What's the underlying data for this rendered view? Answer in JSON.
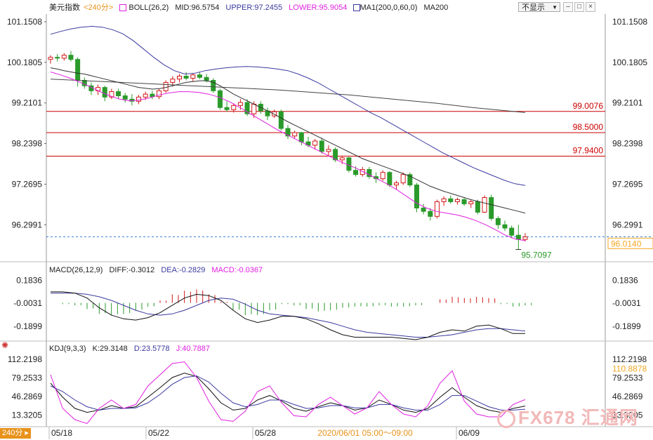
{
  "header": {
    "symbol_label": "美元指数",
    "period_label": "<240分>",
    "boll_label": "BOLL(26,2)",
    "mid_label": "MID:96.5754",
    "upper_label": "UPPER:97.2455",
    "lower_label": "LOWER:95.9054",
    "ma_label": "MA1(200,0,60,0)",
    "ma200_label": "MA200",
    "display_select": "不显示",
    "ctrl_minimize": "–",
    "ctrl_restore": "□",
    "ctrl_close": "×"
  },
  "macd_header": {
    "title": "MACD(26,12,9)",
    "diff": "DIFF:-0.3012",
    "dea": "DEA:-0.2829",
    "macd": "MACD:-0.0367"
  },
  "kdj_header": {
    "title": "KDJ(9,3,3)",
    "k": "K:29.3148",
    "d": "D:23.5778",
    "j": "J:40.7887"
  },
  "footer": {
    "period_tag": "240分",
    "period_arrow": "▸",
    "watermark": "FX678 汇通网"
  },
  "colors": {
    "up": "#d21919",
    "down": "#2a9a2a",
    "mid_line": "#333333",
    "upper_line": "#3a3aa0",
    "lower_line": "#e020e0",
    "ma200_line": "#444444",
    "hline": "#cc0000",
    "current_price": "#2f7fd8",
    "kdj_k": "#111111",
    "kdj_d": "#3a3aa0",
    "kdj_j": "#e020e0",
    "value_label_price": "#f5a623"
  },
  "chart_data": [
    {
      "type": "candlestick",
      "name": "美元指数",
      "title": "美元指数 <240分>",
      "y_ticks": [
        "101.1508",
        "100.1805",
        "99.2101",
        "98.2398",
        "97.2695",
        "96.2991"
      ],
      "ylim": [
        95.5,
        101.3
      ],
      "x_tick_labels": [
        "05/18",
        "05/22",
        "05/28",
        "2020/06/01 05:00～09:00",
        "06/09"
      ],
      "horizontal_levels": [
        {
          "label": "99.0076",
          "value": 99.0076
        },
        {
          "label": "98.5000",
          "value": 98.5
        },
        {
          "label": "97.9400",
          "value": 97.94
        }
      ],
      "current_price": {
        "label": "96.0140",
        "value": 96.014
      },
      "low_annotation": {
        "label": "95.7097",
        "value": 95.7097
      },
      "candles": [
        {
          "o": 100.25,
          "h": 100.35,
          "l": 100.15,
          "c": 100.3
        },
        {
          "o": 100.3,
          "h": 100.38,
          "l": 100.2,
          "c": 100.28
        },
        {
          "o": 100.28,
          "h": 100.4,
          "l": 100.22,
          "c": 100.35
        },
        {
          "o": 100.35,
          "h": 100.45,
          "l": 100.2,
          "c": 100.25
        },
        {
          "o": 100.25,
          "h": 100.3,
          "l": 99.6,
          "c": 99.75
        },
        {
          "o": 99.75,
          "h": 99.82,
          "l": 99.55,
          "c": 99.62
        },
        {
          "o": 99.62,
          "h": 99.7,
          "l": 99.4,
          "c": 99.5
        },
        {
          "o": 99.5,
          "h": 99.65,
          "l": 99.4,
          "c": 99.58
        },
        {
          "o": 99.58,
          "h": 99.62,
          "l": 99.25,
          "c": 99.35
        },
        {
          "o": 99.35,
          "h": 99.55,
          "l": 99.3,
          "c": 99.48
        },
        {
          "o": 99.48,
          "h": 99.55,
          "l": 99.3,
          "c": 99.38
        },
        {
          "o": 99.38,
          "h": 99.45,
          "l": 99.22,
          "c": 99.3
        },
        {
          "o": 99.3,
          "h": 99.42,
          "l": 99.15,
          "c": 99.25
        },
        {
          "o": 99.25,
          "h": 99.4,
          "l": 99.18,
          "c": 99.35
        },
        {
          "o": 99.35,
          "h": 99.48,
          "l": 99.28,
          "c": 99.42
        },
        {
          "o": 99.42,
          "h": 99.5,
          "l": 99.3,
          "c": 99.36
        },
        {
          "o": 99.36,
          "h": 99.55,
          "l": 99.3,
          "c": 99.5
        },
        {
          "o": 99.5,
          "h": 99.75,
          "l": 99.45,
          "c": 99.7
        },
        {
          "o": 99.7,
          "h": 99.85,
          "l": 99.6,
          "c": 99.78
        },
        {
          "o": 99.78,
          "h": 99.9,
          "l": 99.7,
          "c": 99.85
        },
        {
          "o": 99.85,
          "h": 99.95,
          "l": 99.75,
          "c": 99.8
        },
        {
          "o": 99.8,
          "h": 99.92,
          "l": 99.72,
          "c": 99.88
        },
        {
          "o": 99.88,
          "h": 99.95,
          "l": 99.78,
          "c": 99.82
        },
        {
          "o": 99.82,
          "h": 99.9,
          "l": 99.7,
          "c": 99.75
        },
        {
          "o": 99.75,
          "h": 99.8,
          "l": 99.45,
          "c": 99.5
        },
        {
          "o": 99.5,
          "h": 99.55,
          "l": 99.05,
          "c": 99.1
        },
        {
          "o": 99.1,
          "h": 99.25,
          "l": 99.0,
          "c": 99.05
        },
        {
          "o": 99.05,
          "h": 99.2,
          "l": 98.98,
          "c": 99.15
        },
        {
          "o": 99.15,
          "h": 99.3,
          "l": 99.05,
          "c": 99.22
        },
        {
          "o": 99.22,
          "h": 99.3,
          "l": 98.9,
          "c": 98.95
        },
        {
          "o": 98.95,
          "h": 99.25,
          "l": 98.85,
          "c": 99.18
        },
        {
          "o": 99.18,
          "h": 99.25,
          "l": 98.95,
          "c": 99.02
        },
        {
          "o": 99.02,
          "h": 99.1,
          "l": 98.8,
          "c": 98.9
        },
        {
          "o": 98.9,
          "h": 99.05,
          "l": 98.85,
          "c": 99.0
        },
        {
          "o": 99.0,
          "h": 99.05,
          "l": 98.55,
          "c": 98.6
        },
        {
          "o": 98.6,
          "h": 98.68,
          "l": 98.35,
          "c": 98.42
        },
        {
          "o": 98.42,
          "h": 98.55,
          "l": 98.35,
          "c": 98.5
        },
        {
          "o": 98.5,
          "h": 98.52,
          "l": 98.2,
          "c": 98.28
        },
        {
          "o": 98.28,
          "h": 98.4,
          "l": 98.15,
          "c": 98.2
        },
        {
          "o": 98.2,
          "h": 98.35,
          "l": 98.1,
          "c": 98.3
        },
        {
          "o": 98.3,
          "h": 98.38,
          "l": 98.0,
          "c": 98.05
        },
        {
          "o": 98.05,
          "h": 98.2,
          "l": 97.95,
          "c": 98.1
        },
        {
          "o": 98.1,
          "h": 98.15,
          "l": 97.8,
          "c": 97.85
        },
        {
          "o": 97.85,
          "h": 97.95,
          "l": 97.75,
          "c": 97.9
        },
        {
          "o": 97.9,
          "h": 97.92,
          "l": 97.55,
          "c": 97.6
        },
        {
          "o": 97.6,
          "h": 97.7,
          "l": 97.45,
          "c": 97.5
        },
        {
          "o": 97.5,
          "h": 97.68,
          "l": 97.45,
          "c": 97.62
        },
        {
          "o": 97.62,
          "h": 97.68,
          "l": 97.4,
          "c": 97.45
        },
        {
          "o": 97.45,
          "h": 97.55,
          "l": 97.3,
          "c": 97.4
        },
        {
          "o": 97.4,
          "h": 97.6,
          "l": 97.35,
          "c": 97.55
        },
        {
          "o": 97.55,
          "h": 97.58,
          "l": 97.2,
          "c": 97.25
        },
        {
          "o": 97.25,
          "h": 97.35,
          "l": 97.15,
          "c": 97.3
        },
        {
          "o": 97.3,
          "h": 97.55,
          "l": 97.25,
          "c": 97.5
        },
        {
          "o": 97.5,
          "h": 97.55,
          "l": 97.2,
          "c": 97.25
        },
        {
          "o": 97.25,
          "h": 97.3,
          "l": 96.6,
          "c": 96.7
        },
        {
          "o": 96.7,
          "h": 96.8,
          "l": 96.55,
          "c": 96.62
        },
        {
          "o": 96.62,
          "h": 96.7,
          "l": 96.4,
          "c": 96.5
        },
        {
          "o": 96.5,
          "h": 96.9,
          "l": 96.45,
          "c": 96.85
        },
        {
          "o": 96.85,
          "h": 96.98,
          "l": 96.75,
          "c": 96.92
        },
        {
          "o": 96.92,
          "h": 97.0,
          "l": 96.8,
          "c": 96.85
        },
        {
          "o": 96.85,
          "h": 96.95,
          "l": 96.78,
          "c": 96.9
        },
        {
          "o": 96.9,
          "h": 96.95,
          "l": 96.75,
          "c": 96.8
        },
        {
          "o": 96.8,
          "h": 96.9,
          "l": 96.7,
          "c": 96.85
        },
        {
          "o": 96.85,
          "h": 96.9,
          "l": 96.55,
          "c": 96.6
        },
        {
          "o": 96.6,
          "h": 97.0,
          "l": 96.58,
          "c": 96.95
        },
        {
          "o": 96.95,
          "h": 97.02,
          "l": 96.4,
          "c": 96.45
        },
        {
          "o": 96.45,
          "h": 96.5,
          "l": 96.2,
          "c": 96.3
        },
        {
          "o": 96.3,
          "h": 96.4,
          "l": 96.15,
          "c": 96.22
        },
        {
          "o": 96.22,
          "h": 96.28,
          "l": 95.98,
          "c": 96.05
        },
        {
          "o": 96.05,
          "h": 96.3,
          "l": 95.71,
          "c": 95.95
        },
        {
          "o": 95.95,
          "h": 96.1,
          "l": 95.9,
          "c": 96.01
        }
      ],
      "mid_line": [
        100.05,
        100.02,
        99.98,
        99.95,
        99.92,
        99.9,
        99.86,
        99.82,
        99.78,
        99.74,
        99.7,
        99.66,
        99.62,
        99.58,
        99.56,
        99.54,
        99.55,
        99.58,
        99.62,
        99.66,
        99.7,
        99.72,
        99.74,
        99.74,
        99.7,
        99.62,
        99.52,
        99.42,
        99.34,
        99.26,
        99.18,
        99.1,
        99.02,
        98.94,
        98.85,
        98.76,
        98.68,
        98.6,
        98.52,
        98.44,
        98.36,
        98.28,
        98.2,
        98.12,
        98.04,
        97.96,
        97.88,
        97.82,
        97.76,
        97.7,
        97.64,
        97.58,
        97.52,
        97.46,
        97.38,
        97.3,
        97.22,
        97.16,
        97.1,
        97.05,
        97.0,
        96.95,
        96.9,
        96.86,
        96.82,
        96.78,
        96.74,
        96.7,
        96.66,
        96.62,
        96.58
      ],
      "upper_band": [
        100.85,
        100.92,
        100.98,
        101.02,
        101.04,
        101.02,
        100.96,
        100.86,
        100.7,
        100.5,
        100.3,
        100.12,
        99.98,
        99.9,
        99.92,
        99.98,
        100.02,
        100.05,
        100.07,
        100.08,
        100.07,
        100.05,
        100.02,
        99.98,
        99.9,
        99.8,
        99.68,
        99.54,
        99.4,
        99.26,
        99.12,
        98.98,
        98.86,
        98.72,
        98.58,
        98.44,
        98.3,
        98.16,
        98.02,
        97.9,
        97.78,
        97.66,
        97.56,
        97.46,
        97.36,
        97.28,
        97.24
      ],
      "lower_band": [
        99.95,
        99.88,
        99.8,
        99.7,
        99.6,
        99.48,
        99.38,
        99.3,
        99.26,
        99.28,
        99.33,
        99.4,
        99.45,
        99.48,
        99.48,
        99.46,
        99.42,
        99.35,
        99.25,
        99.12,
        98.98,
        98.84,
        98.7,
        98.56,
        98.44,
        98.32,
        98.2,
        98.08,
        97.96,
        97.84,
        97.74,
        97.64,
        97.52,
        97.4,
        97.28,
        97.14,
        96.98,
        96.82,
        96.7,
        96.62,
        96.58,
        96.54,
        96.48,
        96.4,
        96.3,
        96.18,
        96.05,
        95.96,
        95.92
      ],
      "ma200": [
        99.78,
        99.76,
        99.74,
        99.72,
        99.7,
        99.68,
        99.66,
        99.64,
        99.62,
        99.6,
        99.58,
        99.56,
        99.54,
        99.52,
        99.49,
        99.46,
        99.43,
        99.4,
        99.36,
        99.32,
        99.28,
        99.24,
        99.2,
        99.15,
        99.1,
        99.06,
        99.02,
        98.98
      ]
    },
    {
      "type": "bar+line",
      "name": "MACD",
      "title": "MACD(26,12,9)",
      "y_ticks": [
        "0.1836",
        "-0.0031",
        "-0.1899"
      ],
      "ylim": [
        -0.3,
        0.25
      ],
      "diff": [
        0.09,
        0.09,
        0.08,
        0.04,
        -0.04,
        -0.1,
        -0.13,
        -0.14,
        -0.12,
        -0.08,
        -0.02,
        0.04,
        0.07,
        0.06,
        0.02,
        -0.06,
        -0.13,
        -0.16,
        -0.14,
        -0.11,
        -0.11,
        -0.13,
        -0.17,
        -0.22,
        -0.26,
        -0.28,
        -0.28,
        -0.28,
        -0.28,
        -0.29,
        -0.3,
        -0.28,
        -0.24,
        -0.22,
        -0.23,
        -0.19,
        -0.18,
        -0.21,
        -0.25,
        -0.25
      ],
      "dea": [
        0.08,
        0.08,
        0.08,
        0.07,
        0.05,
        0.02,
        -0.02,
        -0.06,
        -0.09,
        -0.1,
        -0.09,
        -0.06,
        -0.02,
        0.02,
        0.04,
        0.03,
        -0.01,
        -0.06,
        -0.09,
        -0.1,
        -0.11,
        -0.12,
        -0.14,
        -0.16,
        -0.19,
        -0.22,
        -0.24,
        -0.25,
        -0.26,
        -0.27,
        -0.28,
        -0.28,
        -0.27,
        -0.26,
        -0.24,
        -0.22,
        -0.21,
        -0.21,
        -0.22,
        -0.23
      ],
      "histogram": [
        0.0,
        -0.01,
        -0.02,
        -0.05,
        -0.09,
        -0.1,
        -0.09,
        -0.06,
        -0.03,
        0.02,
        0.07,
        0.1,
        0.11,
        0.07,
        0.01,
        -0.06,
        -0.1,
        -0.1,
        -0.06,
        -0.01,
        -0.02,
        -0.05,
        -0.07,
        -0.06,
        -0.04,
        -0.03,
        -0.03,
        -0.02,
        -0.03,
        -0.03,
        -0.02,
        0.0,
        0.03,
        0.05,
        0.04,
        0.05,
        0.04,
        -0.01,
        -0.03,
        -0.02
      ]
    },
    {
      "type": "line",
      "name": "KDJ",
      "title": "KDJ(9,3,3)",
      "y_ticks": [
        "112.2198",
        "79.2533",
        "46.2869",
        "13.3205"
      ],
      "value_label": "110.8878",
      "ylim": [
        -5,
        120
      ],
      "series": [
        {
          "name": "K",
          "values": [
            70,
            45,
            25,
            18,
            22,
            30,
            25,
            28,
            45,
            62,
            80,
            88,
            82,
            60,
            35,
            22,
            25,
            40,
            48,
            38,
            25,
            20,
            28,
            35,
            30,
            22,
            26,
            40,
            32,
            22,
            18,
            25,
            45,
            62,
            45,
            30,
            22,
            18,
            25,
            29.3
          ]
        },
        {
          "name": "D",
          "values": [
            65,
            55,
            40,
            28,
            22,
            25,
            25,
            26,
            35,
            50,
            68,
            80,
            83,
            72,
            52,
            35,
            28,
            32,
            40,
            40,
            32,
            25,
            26,
            30,
            30,
            26,
            26,
            32,
            32,
            26,
            22,
            22,
            32,
            48,
            48,
            38,
            28,
            22,
            22,
            23.6
          ]
        },
        {
          "name": "J",
          "values": [
            85,
            25,
            5,
            -2,
            25,
            40,
            25,
            32,
            65,
            85,
            105,
            108,
            80,
            38,
            5,
            2,
            20,
            55,
            65,
            35,
            12,
            10,
            32,
            45,
            30,
            15,
            26,
            55,
            32,
            15,
            10,
            30,
            70,
            92,
            38,
            15,
            10,
            10,
            32,
            40.8
          ]
        }
      ]
    }
  ]
}
